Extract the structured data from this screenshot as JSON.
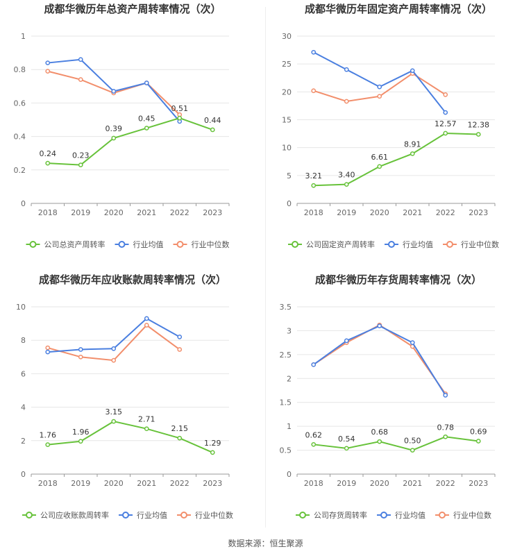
{
  "colors": {
    "company": "#67c23a",
    "avg": "#4a7fe0",
    "median": "#f28e6b",
    "grid": "#e6e6e6",
    "axis": "#999999"
  },
  "source": "数据来源：恒生聚源",
  "chart_data": [
    {
      "type": "line",
      "title": "成都华微历年总资产周转率情况（次）",
      "x": [
        "2018",
        "2019",
        "2020",
        "2021",
        "2022",
        "2023"
      ],
      "ylim": [
        0,
        1
      ],
      "yticks": [
        "0",
        "0.2",
        "0.4",
        "0.6",
        "0.8",
        "1"
      ],
      "grid": true,
      "legend_position": "bottom",
      "series": [
        {
          "name": "公司总资产周转率",
          "color": "company",
          "values": [
            0.24,
            0.23,
            0.39,
            0.45,
            0.51,
            0.44
          ],
          "labels": [
            "0.24",
            "0.23",
            "0.39",
            "0.45",
            "0.51",
            "0.44"
          ]
        },
        {
          "name": "行业均值",
          "color": "avg",
          "values": [
            0.84,
            0.86,
            0.67,
            0.72,
            0.49,
            null
          ]
        },
        {
          "name": "行业中位数",
          "color": "median",
          "values": [
            0.79,
            0.74,
            0.66,
            0.72,
            0.53,
            null
          ]
        }
      ]
    },
    {
      "type": "line",
      "title": "成都华微历年固定资产周转率情况（次）",
      "x": [
        "2018",
        "2019",
        "2020",
        "2021",
        "2022",
        "2023"
      ],
      "ylim": [
        0,
        30
      ],
      "yticks": [
        "0",
        "5",
        "10",
        "15",
        "20",
        "25",
        "30"
      ],
      "grid": true,
      "legend_position": "bottom",
      "series": [
        {
          "name": "公司固定资产周转率",
          "color": "company",
          "values": [
            3.21,
            3.4,
            6.61,
            8.91,
            12.57,
            12.38
          ],
          "labels": [
            "3.21",
            "3.40",
            "6.61",
            "8.91",
            "12.57",
            "12.38"
          ]
        },
        {
          "name": "行业均值",
          "color": "avg",
          "values": [
            27.1,
            24.0,
            20.9,
            23.8,
            16.3,
            null
          ]
        },
        {
          "name": "行业中位数",
          "color": "median",
          "values": [
            20.2,
            18.3,
            19.2,
            23.3,
            19.5,
            null
          ]
        }
      ]
    },
    {
      "type": "line",
      "title": "成都华微历年应收账款周转率情况（次）",
      "x": [
        "2018",
        "2019",
        "2020",
        "2021",
        "2022",
        "2023"
      ],
      "ylim": [
        0,
        10
      ],
      "yticks": [
        "0",
        "2",
        "4",
        "6",
        "8",
        "10"
      ],
      "grid": true,
      "legend_position": "bottom",
      "series": [
        {
          "name": "公司应收账款周转率",
          "color": "company",
          "values": [
            1.76,
            1.96,
            3.15,
            2.71,
            2.15,
            1.29
          ],
          "labels": [
            "1.76",
            "1.96",
            "3.15",
            "2.71",
            "2.15",
            "1.29"
          ]
        },
        {
          "name": "行业均值",
          "color": "avg",
          "values": [
            7.3,
            7.45,
            7.5,
            9.3,
            8.2,
            null
          ]
        },
        {
          "name": "行业中位数",
          "color": "median",
          "values": [
            7.55,
            7.0,
            6.8,
            8.9,
            7.45,
            null
          ]
        }
      ]
    },
    {
      "type": "line",
      "title": "成都华微历年存货周转率情况（次）",
      "x": [
        "2018",
        "2019",
        "2020",
        "2021",
        "2022",
        "2023"
      ],
      "ylim": [
        0,
        3.5
      ],
      "yticks": [
        "0",
        "0.5",
        "1",
        "1.5",
        "2",
        "2.5",
        "3",
        "3.5"
      ],
      "grid": true,
      "legend_position": "bottom",
      "series": [
        {
          "name": "公司存货周转率",
          "color": "company",
          "values": [
            0.62,
            0.54,
            0.68,
            0.5,
            0.78,
            0.69
          ],
          "labels": [
            "0.62",
            "0.54",
            "0.68",
            "0.50",
            "0.78",
            "0.69"
          ]
        },
        {
          "name": "行业均值",
          "color": "avg",
          "values": [
            2.29,
            2.79,
            3.1,
            2.75,
            1.65,
            null
          ]
        },
        {
          "name": "行业中位数",
          "color": "median",
          "values": [
            2.29,
            2.75,
            3.12,
            2.67,
            1.68,
            null
          ]
        }
      ]
    }
  ]
}
